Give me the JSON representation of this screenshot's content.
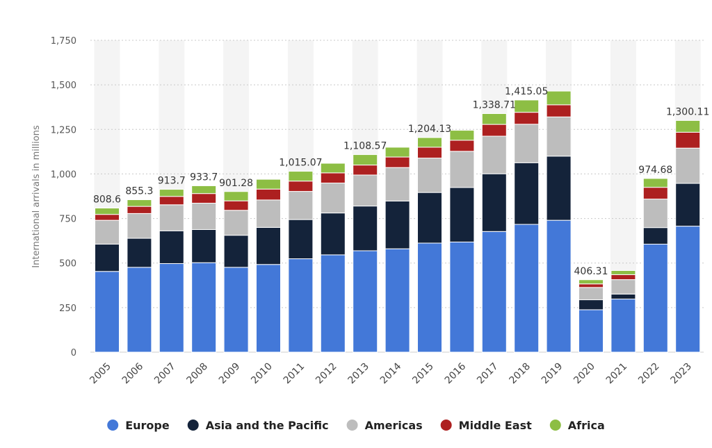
{
  "chart_data": {
    "type": "bar",
    "stacked": true,
    "title": "",
    "xlabel": "",
    "ylabel": "International arrivals in millions",
    "ylim": [
      0,
      1750
    ],
    "yticks": [
      0,
      250,
      500,
      750,
      1000,
      1250,
      1500,
      1750
    ],
    "ytick_labels": [
      "0",
      "250",
      "500",
      "750",
      "1,000",
      "1,250",
      "1,500",
      "1,750"
    ],
    "grid": true,
    "legend_position": "bottom",
    "categories": [
      "2005",
      "2006",
      "2007",
      "2008",
      "2009",
      "2010",
      "2011",
      "2012",
      "2013",
      "2014",
      "2015",
      "2016",
      "2017",
      "2018",
      "2019",
      "2020",
      "2021",
      "2022",
      "2023"
    ],
    "totals": [
      808.6,
      855.3,
      913.7,
      933.7,
      901.28,
      970,
      1015.07,
      1060,
      1108.57,
      1150,
      1204.13,
      1245,
      1338.71,
      1415.05,
      1465,
      406.31,
      458,
      974.68,
      1300.11
    ],
    "total_labels": [
      "808.6",
      "855.3",
      "913.7",
      "933.7",
      "901.28",
      "",
      "1,015.07",
      "",
      "1,108.57",
      "",
      "1,204.13",
      "",
      "1,338.71",
      "1,415.05",
      "",
      "406.31",
      "",
      "974.68",
      "1,300.11"
    ],
    "series": [
      {
        "name": "Europe",
        "color": "#4378d8",
        "values": [
          453,
          476,
          497,
          502,
          476,
          492,
          524,
          546,
          569,
          580,
          612,
          618,
          677,
          717,
          740,
          238,
          298,
          606,
          707
        ]
      },
      {
        "name": "Asia and the Pacific",
        "color": "#14233a",
        "values": [
          153,
          163,
          184,
          186,
          180,
          208,
          220,
          235,
          251,
          268,
          284,
          306,
          324,
          346,
          360,
          56,
          28,
          93,
          240
        ]
      },
      {
        "name": "Americas",
        "color": "#bdbdbd",
        "values": [
          134,
          139,
          146,
          148,
          140,
          154,
          158,
          168,
          174,
          188,
          193,
          203,
          211,
          216,
          220,
          69,
          81,
          160,
          198
        ]
      },
      {
        "name": "Middle East",
        "color": "#ad2020",
        "values": [
          33,
          40,
          47,
          54,
          53,
          61,
          58,
          57,
          56,
          59,
          61,
          62,
          66,
          67,
          68,
          20,
          28,
          66,
          89
        ]
      },
      {
        "name": "Africa",
        "color": "#8dbe44",
        "values": [
          35.6,
          37.3,
          39.7,
          43.7,
          52.28,
          55,
          55.07,
          54,
          58.57,
          55,
          54.13,
          56,
          60.71,
          69.05,
          77,
          23.31,
          23,
          49.68,
          66.11
        ]
      }
    ]
  }
}
